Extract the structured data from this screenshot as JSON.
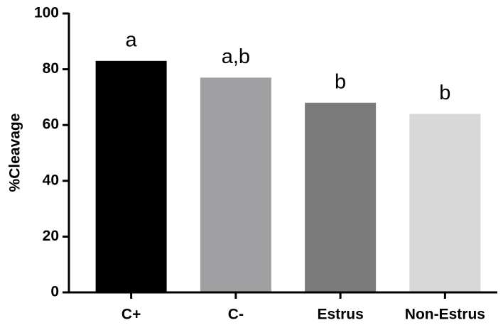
{
  "chart_data": {
    "type": "bar",
    "ylabel": "%Cleavage",
    "categories": [
      "C+",
      "C-",
      "Estrus",
      "Non-Estrus"
    ],
    "values": [
      83,
      77,
      68,
      64
    ],
    "colors": [
      "#000000",
      "#a0a0a2",
      "#7a7a7a",
      "#d8d8d8"
    ],
    "annotations": [
      "a",
      "a,b",
      "b",
      "b"
    ],
    "ylim": [
      0,
      100
    ],
    "yticks": [
      0,
      20,
      40,
      60,
      80,
      100
    ]
  }
}
